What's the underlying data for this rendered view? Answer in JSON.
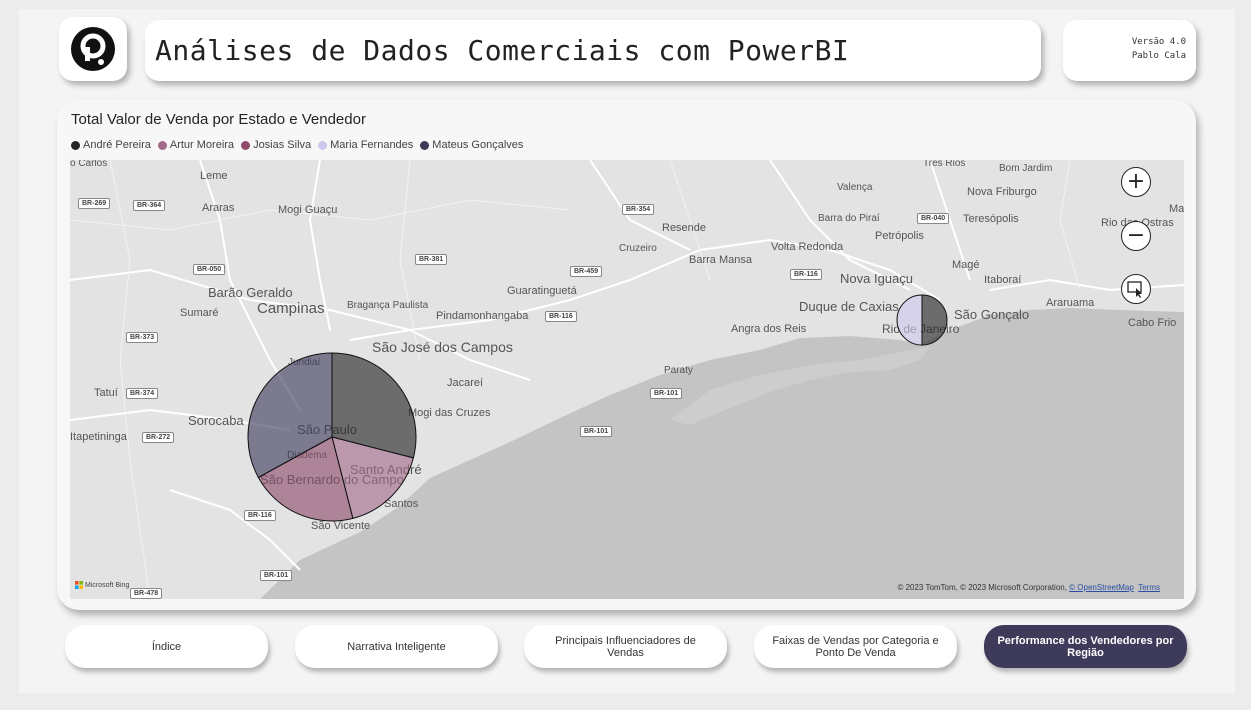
{
  "header": {
    "title": "Análises de Dados Comerciais com PowerBI",
    "version": "Versão 4.0",
    "author": "Pablo Cala",
    "logo_icon": "powerbi-p-logo"
  },
  "visual": {
    "title": "Total Valor de Venda por Estado e Vendedor",
    "legend": [
      {
        "name": "André Pereira",
        "color": "#252423"
      },
      {
        "name": "Artur Moreira",
        "color": "#a46a8a"
      },
      {
        "name": "Josias Silva",
        "color": "#8d4a6a"
      },
      {
        "name": "Maria Fernandes",
        "color": "#cfc8ee"
      },
      {
        "name": "Mateus Gonçalves",
        "color": "#3e3a5a"
      }
    ],
    "map_controls": {
      "zoom_in": "+",
      "zoom_out": "−",
      "select": "select-icon"
    },
    "attribution": "© 2023 TomTom, © 2023 Microsoft Corporation, ",
    "attribution_link": "© OpenStreetMap",
    "terms": "Terms",
    "bing": "Microsoft Bing"
  },
  "map": {
    "cities": [
      "o Carlos",
      "Leme",
      "Araras",
      "Mogi Guaçu",
      "Barão Geraldo",
      "Campinas",
      "Sumaré",
      "Bragança Paulista",
      "Jundiaí",
      "São José dos Campos",
      "Jacareí",
      "Pindamonhangaba",
      "Guaratinguetá",
      "Cruzeiro",
      "Resende",
      "Barra Mansa",
      "Volta Redonda",
      "Barra do Piraí",
      "Valença",
      "Três Rios",
      "Bom Jardim",
      "Nova Friburgo",
      "Teresópolis",
      "Petrópolis",
      "Magé",
      "Nova Iguaçu",
      "Duque de Caxias",
      "Itaboraí",
      "São Gonçalo",
      "Araruama",
      "Cabo Frio",
      "Angra dos Reis",
      "Rio de Janeiro",
      "Paraty",
      "Sorocaba",
      "São Paulo",
      "Diadema",
      "Santo André",
      "São Bernardo do Campo",
      "Santos",
      "São Vicente",
      "Mogi das Cruzes",
      "Tatuí",
      "Itapetininga",
      "Rio das Ostras",
      "Macaé"
    ],
    "roads": [
      "BR-269",
      "BR-364",
      "BR-050",
      "BR-381",
      "BR-354",
      "BR-459",
      "BR-116",
      "BR-040",
      "BR-373",
      "BR-374",
      "BR-272",
      "BR-101",
      "BR-478"
    ]
  },
  "chart_data": {
    "type": "pie",
    "title": "Total Valor de Venda por Estado e Vendedor",
    "series_names": [
      "André Pereira",
      "Artur Moreira",
      "Josias Silva",
      "Maria Fernandes",
      "Mateus Gonçalves"
    ],
    "pies": [
      {
        "location": "SP",
        "values": [
          {
            "name": "André Pereira",
            "value": 29
          },
          {
            "name": "Artur Moreira",
            "value": 17
          },
          {
            "name": "Josias Silva",
            "value": 21
          },
          {
            "name": "Mateus Gonçalves",
            "value": 33
          }
        ]
      },
      {
        "location": "RJ",
        "values": [
          {
            "name": "André Pereira",
            "value": 50
          },
          {
            "name": "Maria Fernandes",
            "value": 50
          }
        ]
      }
    ]
  },
  "nav": [
    {
      "label": "Índice",
      "active": false
    },
    {
      "label": "Narrativa Inteligente",
      "active": false
    },
    {
      "label": "Principais Influenciadores de Vendas",
      "active": false
    },
    {
      "label": "Faixas de Vendas por Categoria e Ponto De Venda",
      "active": false
    },
    {
      "label": "Performance dos Vendedores por Região",
      "active": true
    }
  ]
}
